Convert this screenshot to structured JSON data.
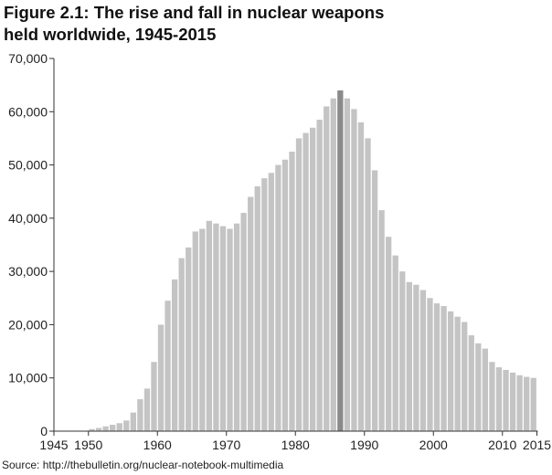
{
  "header": {
    "title_line1": "Figure 2.1: The rise and fall in nuclear weapons",
    "title_line2": "held worldwide, 1945-2015"
  },
  "footer": {
    "source": "Source: http://thebulletin.org/nuclear-notebook-multimedia"
  },
  "colors": {
    "bar": "#c4c4c4",
    "bar_highlight": "#8a8a8a",
    "axis": "#333333"
  },
  "chart_data": {
    "type": "bar",
    "title": "Figure 2.1: The rise and fall in nuclear weapons held worldwide, 1945-2015",
    "xlabel": "",
    "ylabel": "",
    "xlim": [
      1945,
      2015
    ],
    "ylim": [
      0,
      70000
    ],
    "grid": false,
    "legend": "none",
    "y_ticks": [
      0,
      10000,
      20000,
      30000,
      40000,
      50000,
      60000,
      70000
    ],
    "y_tick_labels": [
      "0",
      "10,000",
      "20,000",
      "30,000",
      "40,000",
      "50,000",
      "60,000",
      "70,000"
    ],
    "x_ticks": [
      1945,
      1950,
      1960,
      1970,
      1980,
      1990,
      2000,
      2010,
      2015
    ],
    "x_tick_labels": [
      "1945",
      "1950",
      "1960",
      "1970",
      "1980",
      "1990",
      "2000",
      "2010",
      "2015"
    ],
    "highlight_year": 1986,
    "years": [
      1945,
      1946,
      1947,
      1948,
      1949,
      1950,
      1951,
      1952,
      1953,
      1954,
      1955,
      1956,
      1957,
      1958,
      1959,
      1960,
      1961,
      1962,
      1963,
      1964,
      1965,
      1966,
      1967,
      1968,
      1969,
      1970,
      1971,
      1972,
      1973,
      1974,
      1975,
      1976,
      1977,
      1978,
      1979,
      1980,
      1981,
      1982,
      1983,
      1984,
      1985,
      1986,
      1987,
      1988,
      1989,
      1990,
      1991,
      1992,
      1993,
      1994,
      1995,
      1996,
      1997,
      1998,
      1999,
      2000,
      2001,
      2002,
      2003,
      2004,
      2005,
      2006,
      2007,
      2008,
      2009,
      2010,
      2011,
      2012,
      2013,
      2014
    ],
    "values": [
      0,
      0,
      0,
      0,
      0,
      400,
      600,
      900,
      1200,
      1500,
      2000,
      3500,
      6000,
      8000,
      13000,
      20000,
      24500,
      28500,
      32500,
      34500,
      37500,
      38000,
      39500,
      39000,
      38500,
      38000,
      39000,
      41000,
      44000,
      46000,
      47500,
      48500,
      50000,
      51000,
      52500,
      55000,
      56000,
      57000,
      58500,
      61000,
      62500,
      64000,
      62500,
      60500,
      58000,
      55000,
      49000,
      41500,
      36500,
      33000,
      30000,
      28000,
      27500,
      26500,
      25000,
      24000,
      23500,
      22500,
      21500,
      20500,
      18000,
      16500,
      15500,
      13000,
      12000,
      11500,
      11000,
      10500,
      10200,
      10000
    ]
  }
}
